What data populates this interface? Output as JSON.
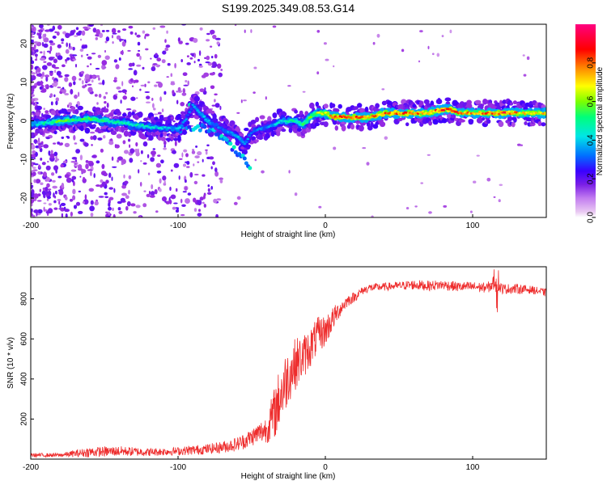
{
  "chart_data": [
    {
      "type": "heatmap",
      "title": "S199.2025.349.08.53.G14",
      "xlabel": "Height of straight line (km)",
      "ylabel": "Frequency (Hz)",
      "xlim": [
        -200,
        150
      ],
      "ylim": [
        -25,
        25
      ],
      "xticks": [
        -200,
        -100,
        0,
        100
      ],
      "xtick_labels": [
        "-200",
        "-100",
        "0",
        "100"
      ],
      "yticks": [
        -20,
        -10,
        0,
        10,
        20
      ],
      "ytick_labels": [
        "-20",
        "-10",
        "0",
        "10",
        "20"
      ],
      "colorbar": {
        "label": "Normalized spectral amplitude",
        "range": [
          0,
          1
        ],
        "ticks": [
          0.0,
          0.2,
          0.4,
          0.6,
          0.8
        ],
        "tick_labels": [
          "0.0",
          "0.2",
          "0.4",
          "0.6",
          "0.8"
        ],
        "colors": [
          "#e9c8f2",
          "#9b2de0",
          "#3a00ff",
          "#0070ff",
          "#00e6e6",
          "#00ff7a",
          "#7cff00",
          "#ffff00",
          "#ff8c00",
          "#ff0000",
          "#ff0080"
        ]
      },
      "ridge": {
        "x": [
          -200,
          -180,
          -160,
          -140,
          -120,
          -100,
          -95,
          -90,
          -85,
          -80,
          -70,
          -60,
          -55,
          -50,
          -45,
          -40,
          -35,
          -30,
          -25,
          -20,
          -15,
          -10,
          -5,
          0,
          5,
          10,
          20,
          30,
          40,
          50,
          60,
          70,
          80,
          85,
          90,
          95,
          100,
          110,
          120,
          130,
          140,
          150
        ],
        "frequency": [
          -1,
          0,
          0.5,
          -0.5,
          -1.5,
          -2,
          0,
          4,
          2,
          0,
          -2,
          -4,
          -6,
          -3,
          -2,
          -2,
          -1,
          0,
          0,
          0,
          -1,
          1,
          2,
          2,
          1,
          1,
          1,
          1,
          2,
          2,
          2,
          2,
          3,
          3,
          2,
          2,
          2,
          2,
          2,
          2,
          2,
          2
        ],
        "amplitude": [
          0.35,
          0.55,
          0.5,
          0.45,
          0.4,
          0.35,
          0.3,
          0.3,
          0.35,
          0.35,
          0.3,
          0.35,
          0.35,
          0.3,
          0.3,
          0.3,
          0.35,
          0.4,
          0.45,
          0.45,
          0.5,
          0.55,
          0.6,
          0.65,
          0.75,
          0.8,
          0.85,
          0.75,
          0.8,
          0.85,
          0.8,
          0.8,
          0.85,
          0.85,
          0.8,
          0.75,
          0.75,
          0.8,
          0.85,
          0.75,
          0.7,
          0.7
        ]
      }
    },
    {
      "type": "line",
      "xlabel": "Height of straight line (km)",
      "ylabel": "SNR (10 * v/v)",
      "xlim": [
        -200,
        150
      ],
      "ylim": [
        0,
        960
      ],
      "xticks": [
        -200,
        -100,
        0,
        100
      ],
      "xtick_labels": [
        "-200",
        "-100",
        "0",
        "100"
      ],
      "yticks": [
        200,
        400,
        600,
        800
      ],
      "ytick_labels": [
        "200",
        "400",
        "600",
        "800"
      ],
      "color": "#ee2c2c",
      "series": [
        {
          "name": "SNR",
          "x": [
            -200,
            -180,
            -160,
            -140,
            -120,
            -100,
            -90,
            -80,
            -70,
            -60,
            -55,
            -50,
            -45,
            -40,
            -35,
            -30,
            -25,
            -20,
            -15,
            -10,
            -5,
            0,
            5,
            10,
            15,
            20,
            25,
            30,
            40,
            50,
            60,
            70,
            80,
            90,
            100,
            110,
            115,
            120,
            130,
            140,
            150
          ],
          "y": [
            20,
            20,
            35,
            40,
            35,
            40,
            45,
            50,
            60,
            75,
            90,
            110,
            130,
            150,
            220,
            330,
            420,
            480,
            510,
            560,
            620,
            640,
            700,
            750,
            790,
            810,
            840,
            855,
            860,
            865,
            870,
            865,
            870,
            860,
            860,
            855,
            880,
            850,
            850,
            845,
            830
          ],
          "noise": [
            10,
            10,
            25,
            25,
            20,
            20,
            25,
            25,
            30,
            35,
            40,
            45,
            55,
            70,
            130,
            160,
            140,
            130,
            110,
            100,
            90,
            80,
            60,
            40,
            30,
            25,
            20,
            20,
            20,
            20,
            25,
            25,
            25,
            25,
            25,
            25,
            45,
            25,
            25,
            20,
            20
          ]
        }
      ]
    }
  ]
}
